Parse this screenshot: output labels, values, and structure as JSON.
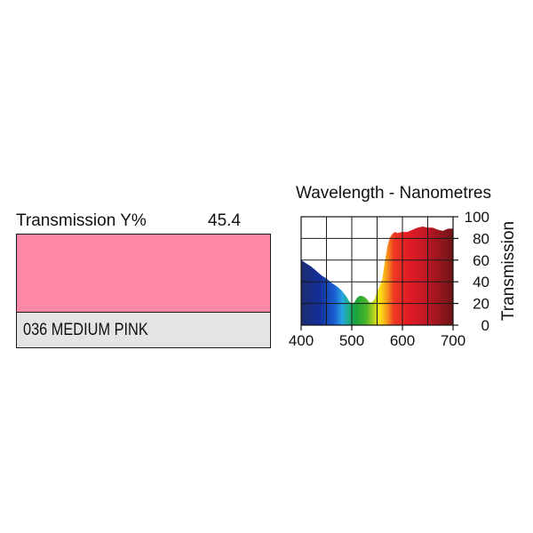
{
  "swatch": {
    "transmission_label": "Transmission Y%",
    "transmission_value": "45.4",
    "name": "036 MEDIUM PINK",
    "color": "#fe88a5"
  },
  "chart_data": {
    "type": "area",
    "title": "Wavelength - Nanometres",
    "xlabel": "",
    "ylabel": "Transmission",
    "xlim": [
      400,
      700
    ],
    "ylim": [
      0,
      100
    ],
    "x_ticks": [
      400,
      500,
      600,
      700
    ],
    "y_ticks": [
      0,
      20,
      40,
      60,
      80,
      100
    ],
    "grid": true,
    "fill": "visible spectrum colors (violet 400 nm to deep red 700 nm)",
    "series": [
      {
        "points": [
          [
            400,
            60
          ],
          [
            410,
            57
          ],
          [
            420,
            54
          ],
          [
            430,
            50
          ],
          [
            440,
            46
          ],
          [
            450,
            43
          ],
          [
            460,
            39
          ],
          [
            470,
            36
          ],
          [
            480,
            32
          ],
          [
            490,
            26
          ],
          [
            495,
            22
          ],
          [
            500,
            20
          ],
          [
            505,
            21
          ],
          [
            510,
            25
          ],
          [
            515,
            27
          ],
          [
            520,
            27
          ],
          [
            525,
            26
          ],
          [
            530,
            24
          ],
          [
            535,
            21
          ],
          [
            540,
            21
          ],
          [
            545,
            24
          ],
          [
            550,
            31
          ],
          [
            555,
            36
          ],
          [
            560,
            42
          ],
          [
            565,
            58
          ],
          [
            570,
            72
          ],
          [
            575,
            81
          ],
          [
            580,
            84
          ],
          [
            585,
            86
          ],
          [
            590,
            85
          ],
          [
            600,
            86
          ],
          [
            610,
            86
          ],
          [
            620,
            88
          ],
          [
            630,
            90
          ],
          [
            640,
            91
          ],
          [
            650,
            90
          ],
          [
            660,
            90
          ],
          [
            670,
            88
          ],
          [
            680,
            87
          ],
          [
            690,
            89
          ],
          [
            700,
            89
          ]
        ]
      }
    ]
  }
}
